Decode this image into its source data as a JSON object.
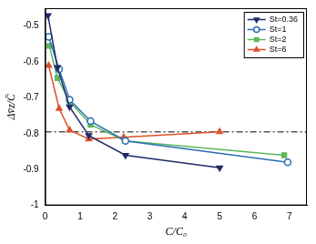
{
  "chart_data": {
    "type": "line",
    "x_label": "C/C₀",
    "y_label": "Δv̄z/C̄",
    "xlim": [
      0,
      7.5
    ],
    "xticks": [
      0,
      1,
      2,
      3,
      4,
      5,
      6,
      7
    ],
    "ylim": [
      -1,
      -0.45
    ],
    "yticks": [
      -1,
      -0.9,
      -0.8,
      -0.7,
      -0.6,
      -0.5
    ],
    "grid": false,
    "legend": "top-right",
    "series": [
      {
        "name": "St=0.36",
        "color": "#1f2a6b",
        "marker": "triangle-down",
        "x": [
          0.08,
          0.35,
          0.7,
          1.25,
          2.3,
          5.0
        ],
        "values": [
          -0.47,
          -0.615,
          -0.725,
          -0.805,
          -0.86,
          -0.895
        ]
      },
      {
        "name": "St=1",
        "color": "#2a6fb5",
        "marker": "circle",
        "x": [
          0.1,
          0.4,
          0.7,
          1.3,
          2.3,
          6.95
        ],
        "values": [
          -0.53,
          -0.62,
          -0.705,
          -0.765,
          -0.82,
          -0.88
        ]
      },
      {
        "name": "St=2",
        "color": "#5cb85c",
        "marker": "square",
        "x": [
          0.12,
          0.35,
          0.7,
          1.3,
          2.3,
          6.85
        ],
        "values": [
          -0.555,
          -0.645,
          -0.71,
          -0.775,
          -0.82,
          -0.86
        ]
      },
      {
        "name": "St=6",
        "color": "#e0502a",
        "marker": "triangle",
        "x": [
          0.1,
          0.4,
          0.7,
          1.25,
          2.25,
          5.0
        ],
        "values": [
          -0.61,
          -0.73,
          -0.79,
          -0.815,
          -0.81,
          -0.795
        ]
      }
    ],
    "hlines": [
      {
        "y": -0.795,
        "color": "#000000",
        "line_style": "dashdot"
      }
    ]
  }
}
